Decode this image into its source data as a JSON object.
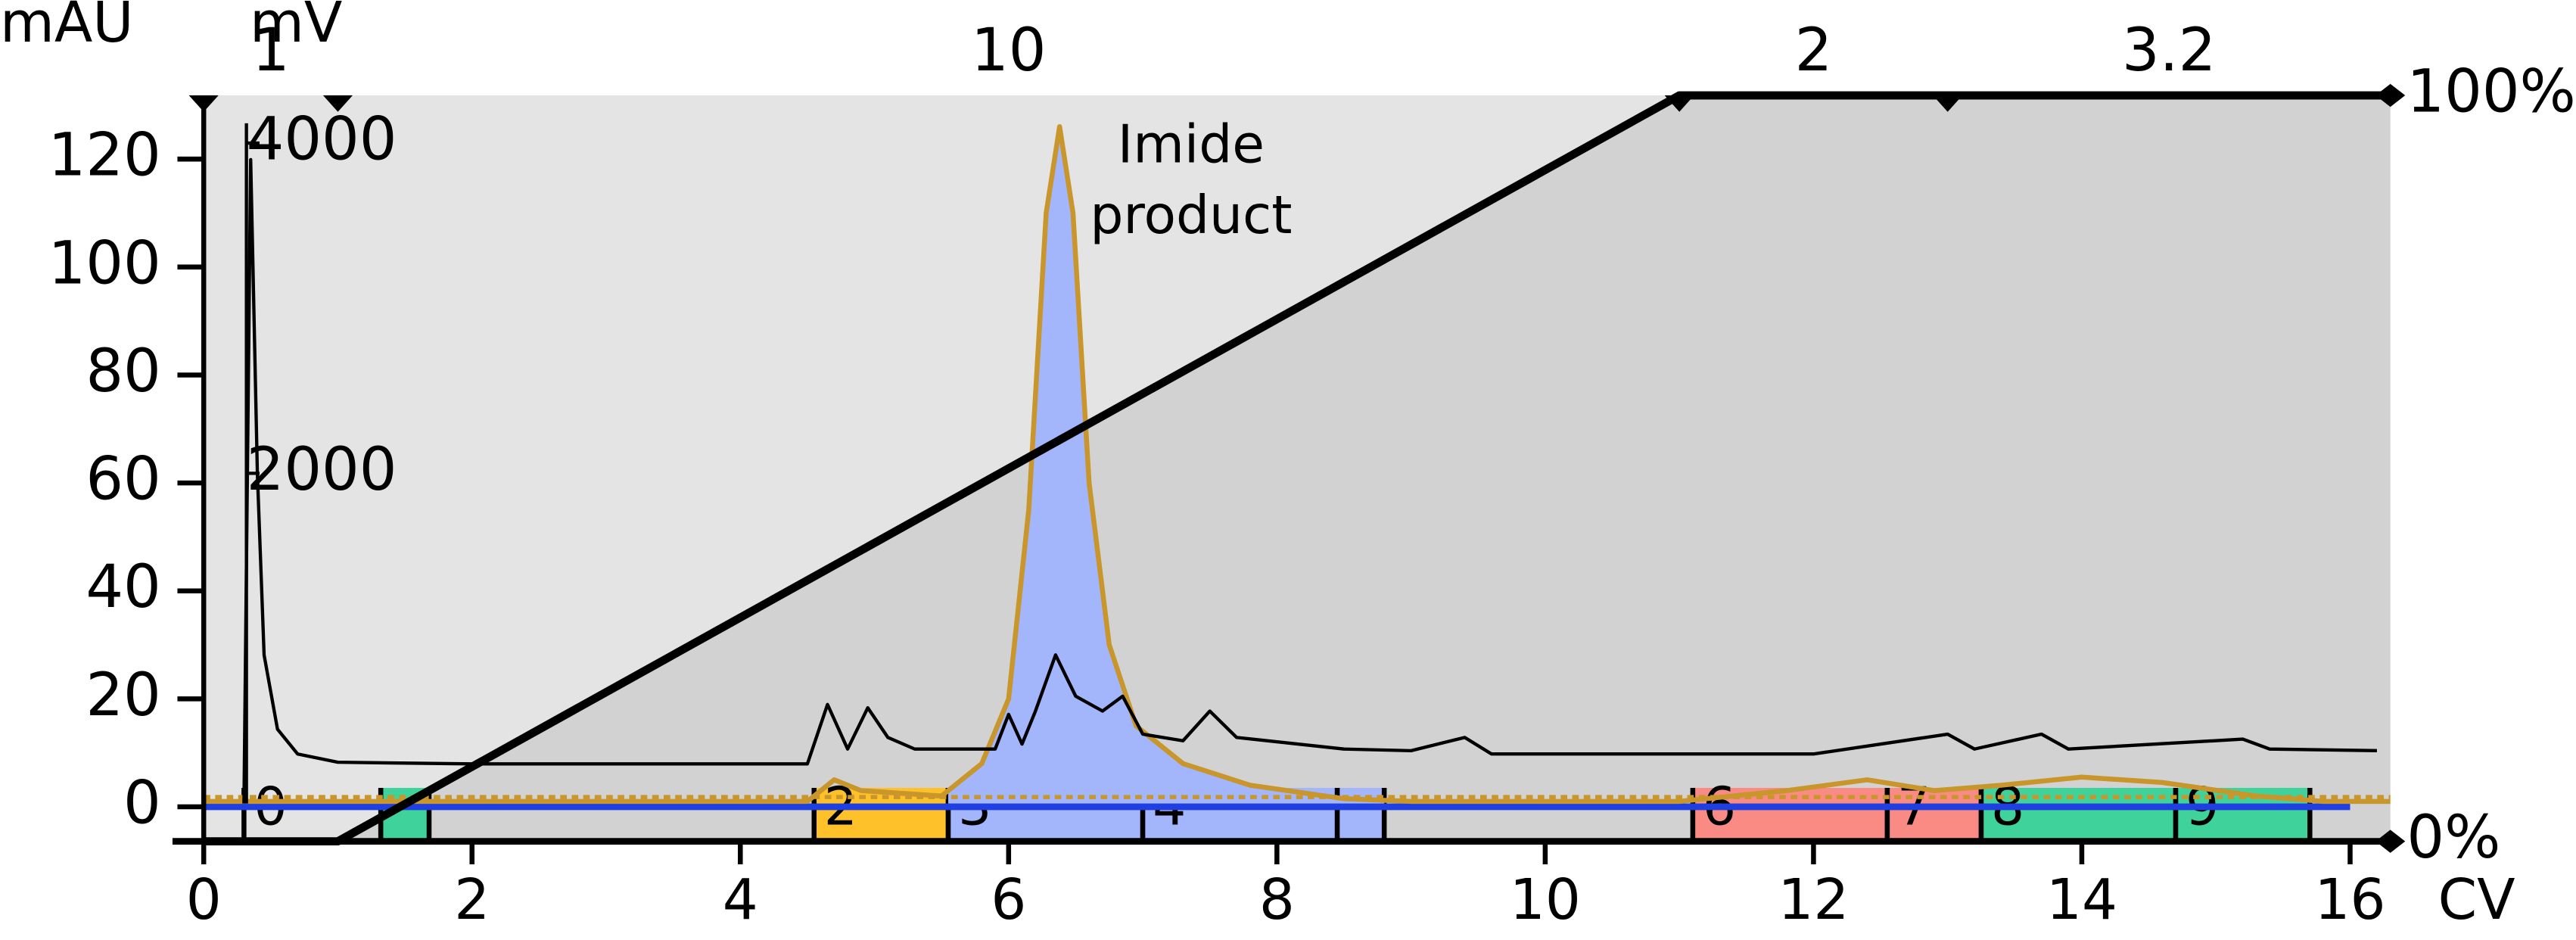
{
  "chart_data": {
    "type": "line",
    "ylabel": "mAU",
    "y2label": "mV",
    "xlabel": "CV",
    "xlim": [
      0,
      16.3
    ],
    "xticks": [
      0,
      2,
      4,
      6,
      8,
      10,
      12,
      14,
      16
    ],
    "ylim": [
      -6.4,
      131.8
    ],
    "yticks": [
      0,
      20,
      40,
      60,
      80,
      100,
      120
    ],
    "y2lim": [
      -229,
      4289
    ],
    "y2ticks": [
      2000,
      4000
    ],
    "y3lim": [
      0,
      100
    ],
    "y3ticks": [
      {
        "value": 0,
        "label": "0%"
      },
      {
        "value": 100,
        "label": "100%"
      }
    ],
    "series": [
      {
        "color": "#c8962a",
        "x": [
          0,
          4.5,
          4.7,
          4.9,
          5.5,
          5.8,
          6.0,
          6.15,
          6.28,
          6.38,
          6.48,
          6.6,
          6.75,
          6.95,
          7.3,
          7.8,
          8.5,
          9,
          11,
          11.8,
          12.4,
          12.9,
          13.4,
          14.0,
          14.6,
          15.3,
          15.8,
          16.3
        ],
        "values": [
          1,
          1,
          5,
          3,
          2,
          8,
          20,
          55,
          110,
          126,
          110,
          60,
          30,
          15,
          8,
          4,
          1.5,
          1,
          1,
          3,
          5,
          3,
          4,
          5.5,
          4.5,
          2,
          1,
          1
        ]
      },
      {
        "color": "#000000",
        "axis": "y2",
        "x": [
          0.3,
          0.35,
          0.4,
          0.45,
          0.55,
          0.7,
          1,
          2,
          3,
          4,
          4.5,
          4.65,
          4.8,
          4.95,
          5.1,
          5.3,
          5.9,
          6.0,
          6.1,
          6.2,
          6.35,
          6.5,
          6.7,
          6.85,
          7.0,
          7.3,
          7.5,
          7.7,
          8.5,
          9,
          9.4,
          9.6,
          12,
          13,
          13.2,
          13.7,
          13.9,
          15.2,
          15.4,
          16.2
        ],
        "values": [
          0,
          3900,
          2000,
          900,
          450,
          300,
          250,
          240,
          240,
          240,
          240,
          600,
          330,
          580,
          400,
          330,
          330,
          540,
          360,
          560,
          900,
          650,
          560,
          650,
          420,
          380,
          560,
          400,
          330,
          320,
          400,
          300,
          300,
          420,
          330,
          420,
          330,
          390,
          330,
          320
        ]
      },
      {
        "color": "#000000",
        "axis": "y3",
        "x": [
          0,
          1,
          11,
          16.3
        ],
        "values": [
          0,
          0,
          100,
          100
        ]
      }
    ],
    "annotation": [
      "Imide",
      "product"
    ],
    "segments": {
      "bounds": [
        0,
        1,
        11,
        13,
        16.3
      ],
      "values": [
        1,
        10,
        2,
        3.2
      ]
    },
    "fractions": [
      {
        "start": 0.3,
        "end": 1.32,
        "label": 0
      },
      {
        "start": 1.32,
        "end": 1.68,
        "label": null,
        "color": "#3fd39b"
      },
      {
        "start": 4.55,
        "end": 5.55,
        "label": 2,
        "color": "#ffc12a"
      },
      {
        "start": 5.55,
        "end": 7.0,
        "label": 3,
        "color": "#a3b5fb"
      },
      {
        "start": 7.0,
        "end": 8.45,
        "label": 4,
        "color": "#a3b5fb"
      },
      {
        "start": 8.45,
        "end": 8.8,
        "label": null,
        "color": "#a3b5fb"
      },
      {
        "start": 11.1,
        "end": 12.55,
        "label": 6,
        "color": "#f98b84"
      },
      {
        "start": 12.55,
        "end": 13.25,
        "label": 7,
        "color": "#f98b84"
      },
      {
        "start": 13.25,
        "end": 14.7,
        "label": 8,
        "color": "#3fd39b"
      },
      {
        "start": 14.7,
        "end": 15.7,
        "label": 9,
        "color": "#3fd39b"
      }
    ],
    "peak_fill": {
      "xlim": [
        5.55,
        8.8
      ],
      "color": "#a3b5fb"
    },
    "baseline": {
      "value": 0,
      "color": "#1f3fe0"
    },
    "threshold": {
      "value": 1.8,
      "color": "#c8962a"
    },
    "background": [
      "#e4e4e4",
      "#d2d2d2"
    ]
  }
}
